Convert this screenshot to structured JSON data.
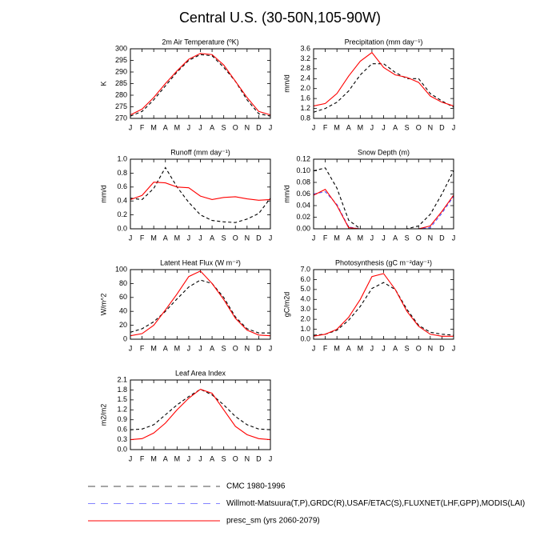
{
  "title": "Central U.S. (30-50N,105-90W)",
  "chart_data": [
    {
      "type": "line",
      "title": "2m Air Temperature (ºK)",
      "y_label": "K",
      "categories": [
        "J",
        "F",
        "M",
        "A",
        "M",
        "J",
        "J",
        "A",
        "S",
        "O",
        "N",
        "D",
        "J"
      ],
      "ylim": [
        270,
        300
      ],
      "yticks": [
        270,
        275,
        280,
        285,
        290,
        295,
        300
      ],
      "series": [
        {
          "name": "CMC 1980-1996",
          "color": "#000000",
          "dash": true,
          "values": [
            271,
            273,
            278,
            284,
            290,
            295,
            297.5,
            297,
            292,
            286,
            278,
            272,
            271
          ]
        },
        {
          "name": "presc_sm (yrs 2060-2079)",
          "color": "#ff0000",
          "dash": false,
          "values": [
            271.5,
            274,
            279,
            285,
            290.5,
            295.5,
            298,
            297.5,
            293,
            286,
            279,
            273,
            271.5
          ]
        }
      ]
    },
    {
      "type": "line",
      "title": "Precipitation (mm day⁻¹)",
      "y_label": "mm/d",
      "categories": [
        "J",
        "F",
        "M",
        "A",
        "M",
        "J",
        "J",
        "A",
        "S",
        "O",
        "N",
        "D",
        "J"
      ],
      "ylim": [
        0.8,
        3.6
      ],
      "yticks": [
        0.8,
        1.2,
        1.6,
        {
          "value": 2,
          "label": "2.0"
        },
        2.4,
        2.8,
        3.2,
        3.6
      ],
      "series": [
        {
          "name": "CMC 1980-1996",
          "color": "#000000",
          "dash": true,
          "values": [
            1.05,
            1.2,
            1.45,
            1.9,
            2.55,
            3.0,
            3.0,
            2.65,
            2.4,
            2.4,
            1.8,
            1.5,
            1.25
          ]
        },
        {
          "name": "presc_sm (yrs 2060-2079)",
          "color": "#ff0000",
          "dash": false,
          "values": [
            1.3,
            1.4,
            1.8,
            2.5,
            3.1,
            3.45,
            2.85,
            2.55,
            2.45,
            2.25,
            1.7,
            1.45,
            1.3
          ]
        }
      ]
    },
    {
      "type": "line",
      "title": "Runoff (mm day⁻¹)",
      "y_label": "mm/d",
      "categories": [
        "J",
        "F",
        "M",
        "A",
        "M",
        "J",
        "J",
        "A",
        "S",
        "O",
        "N",
        "D",
        "J"
      ],
      "ylim": [
        0,
        1
      ],
      "yticks": [
        {
          "value": 0,
          "label": "0.0"
        },
        0.2,
        0.4,
        0.6,
        0.8,
        {
          "value": 1,
          "label": "1.0"
        }
      ],
      "series": [
        {
          "name": "CMC 1980-1996",
          "color": "#000000",
          "dash": true,
          "values": [
            0.44,
            0.42,
            0.58,
            0.88,
            0.6,
            0.38,
            0.2,
            0.12,
            0.1,
            0.09,
            0.14,
            0.22,
            0.44
          ]
        },
        {
          "name": "presc_sm (yrs 2060-2079)",
          "color": "#ff0000",
          "dash": false,
          "values": [
            0.42,
            0.48,
            0.67,
            0.66,
            0.6,
            0.59,
            0.47,
            0.42,
            0.45,
            0.46,
            0.43,
            0.41,
            0.42
          ]
        }
      ]
    },
    {
      "type": "line",
      "title": "Snow Depth (m)",
      "y_label": "mm/d",
      "legend": "bottom",
      "categories": [
        "J",
        "F",
        "M",
        "A",
        "M",
        "J",
        "J",
        "A",
        "S",
        "O",
        "N",
        "D",
        "J"
      ],
      "ylim": [
        0,
        0.12
      ],
      "yticks": [
        {
          "value": 0,
          "label": "0.00"
        },
        {
          "value": 0.02,
          "label": "0.02"
        },
        {
          "value": 0.04,
          "label": "0.04"
        },
        {
          "value": 0.06,
          "label": "0.06"
        },
        {
          "value": 0.08,
          "label": "0.08"
        },
        {
          "value": 0.1,
          "label": "0.10"
        },
        {
          "value": 0.12,
          "label": "0.12"
        }
      ],
      "series": [
        {
          "name": "CMC 1980-1996",
          "color": "#000000",
          "dash": true,
          "values": [
            0.1,
            0.105,
            0.07,
            0.015,
            0,
            0,
            0,
            0,
            0,
            0.005,
            0.025,
            0.06,
            0.1
          ]
        },
        {
          "name": "Willmott-Matsuura(T,P),GRDC(R),USAF/ETAC(S),FLUXNET(LHF,GPP),MODIS(LAI)",
          "color": "#5050ff",
          "dash": true,
          "values": [
            0.06,
            0.064,
            0.042,
            0.003,
            0,
            0,
            0,
            0,
            0,
            0,
            0.002,
            0.027,
            0.056
          ]
        },
        {
          "name": "presc_sm (yrs 2060-2079)",
          "color": "#ff0000",
          "dash": false,
          "values": [
            0.058,
            0.068,
            0.04,
            0.002,
            0,
            0,
            0,
            0,
            0,
            0,
            0.005,
            0.03,
            0.058
          ]
        }
      ]
    },
    {
      "type": "line",
      "title": "Latent Heat Flux (W m⁻²)",
      "y_label": "W/m^2",
      "categories": [
        "J",
        "F",
        "M",
        "A",
        "M",
        "J",
        "J",
        "A",
        "S",
        "O",
        "N",
        "D",
        "J"
      ],
      "ylim": [
        0,
        100
      ],
      "yticks": [
        0,
        20,
        40,
        60,
        80,
        100
      ],
      "series": [
        {
          "name": "CMC 1980-1996",
          "color": "#000000",
          "dash": true,
          "values": [
            10,
            15,
            25,
            40,
            58,
            75,
            85,
            80,
            60,
            32,
            15,
            9,
            9
          ]
        },
        {
          "name": "presc_sm (yrs 2060-2079)",
          "color": "#ff0000",
          "dash": false,
          "values": [
            5,
            8,
            20,
            42,
            65,
            90,
            98,
            80,
            57,
            30,
            13,
            6,
            5
          ]
        }
      ]
    },
    {
      "type": "line",
      "title": "Photosynthesis (gC m⁻²day⁻¹)",
      "y_label": "gC/m2d",
      "categories": [
        "J",
        "F",
        "M",
        "A",
        "M",
        "J",
        "J",
        "A",
        "S",
        "O",
        "N",
        "D",
        "J"
      ],
      "ylim": [
        0,
        7
      ],
      "yticks": [
        {
          "value": 0,
          "label": "0.0"
        },
        {
          "value": 1,
          "label": "1.0"
        },
        {
          "value": 2,
          "label": "2.0"
        },
        {
          "value": 3,
          "label": "3.0"
        },
        {
          "value": 4,
          "label": "4.0"
        },
        {
          "value": 5,
          "label": "5.0"
        },
        {
          "value": 6,
          "label": "6.0"
        },
        {
          "value": 7,
          "label": "7.0"
        }
      ],
      "series": [
        {
          "name": "CMC 1980-1996",
          "color": "#000000",
          "dash": true,
          "values": [
            0.4,
            0.5,
            0.9,
            1.9,
            3.3,
            5.1,
            5.7,
            5.0,
            3.0,
            1.4,
            0.7,
            0.5,
            0.4
          ]
        },
        {
          "name": "presc_sm (yrs 2060-2079)",
          "color": "#ff0000",
          "dash": false,
          "values": [
            0.3,
            0.5,
            1.0,
            2.2,
            4.0,
            6.3,
            6.6,
            5.0,
            2.8,
            1.3,
            0.5,
            0.3,
            0.3
          ]
        }
      ]
    },
    {
      "type": "line",
      "title": "Leaf Area Index",
      "y_label": "m2/m2",
      "categories": [
        "J",
        "F",
        "M",
        "A",
        "M",
        "J",
        "J",
        "A",
        "S",
        "O",
        "N",
        "D",
        "J"
      ],
      "ylim": [
        0,
        2.1
      ],
      "yticks": [
        {
          "value": 0,
          "label": "0.0"
        },
        0.3,
        0.6,
        0.9,
        1.2,
        1.5,
        1.8,
        2.1
      ],
      "series": [
        {
          "name": "CMC 1980-1996",
          "color": "#000000",
          "dash": true,
          "values": [
            0.6,
            0.62,
            0.75,
            1.05,
            1.35,
            1.6,
            1.82,
            1.65,
            1.35,
            1.0,
            0.75,
            0.62,
            0.6
          ]
        },
        {
          "name": "presc_sm (yrs 2060-2079)",
          "color": "#ff0000",
          "dash": false,
          "values": [
            0.3,
            0.33,
            0.5,
            0.8,
            1.2,
            1.55,
            1.82,
            1.7,
            1.2,
            0.7,
            0.45,
            0.33,
            0.3
          ]
        }
      ]
    }
  ]
}
